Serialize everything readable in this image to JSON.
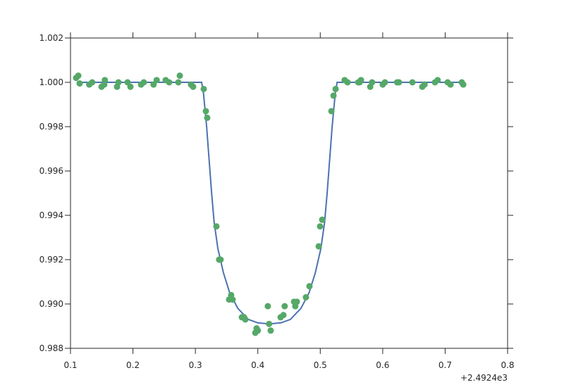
{
  "chart_data": {
    "type": "scatter",
    "x_offset_label": "+2.4924e3",
    "xlim": [
      0.1,
      0.8
    ],
    "xticks": [
      0.1,
      0.2,
      0.3,
      0.4,
      0.5,
      0.6,
      0.7,
      0.8
    ],
    "ylim": [
      0.988,
      1.002
    ],
    "yticks": [
      0.988,
      {
        "value": 0.99,
        "label": "0.990"
      },
      0.992,
      0.994,
      0.996,
      0.998,
      {
        "value": 1.0,
        "label": "1.000"
      },
      1.002
    ],
    "grid": false,
    "series": [
      {
        "type": "line",
        "color": "#4c72b0",
        "x": [
          0.11,
          0.31,
          0.313,
          0.318,
          0.322,
          0.326,
          0.33,
          0.336,
          0.345,
          0.355,
          0.368,
          0.385,
          0.4,
          0.4185,
          0.437,
          0.452,
          0.469,
          0.482,
          0.492,
          0.501,
          0.507,
          0.511,
          0.515,
          0.519,
          0.524,
          0.527,
          0.73
        ],
        "values": [
          1.0,
          1.0,
          0.9995,
          0.998,
          0.9965,
          0.995,
          0.9937,
          0.9925,
          0.9914,
          0.9905,
          0.9898,
          0.9893,
          0.98915,
          0.9891,
          0.98915,
          0.9893,
          0.9898,
          0.9905,
          0.9914,
          0.9925,
          0.9937,
          0.995,
          0.9965,
          0.998,
          0.9995,
          1.0,
          1.0
        ]
      },
      {
        "type": "scatter",
        "color": "#55a868",
        "x": [
          0.109,
          0.1125,
          0.1147,
          0.13,
          0.1348,
          0.1497,
          0.154,
          0.155,
          0.1745,
          0.1768,
          0.1914,
          0.196,
          0.213,
          0.2174,
          0.233,
          0.238,
          0.2524,
          0.258,
          0.275,
          0.2727,
          0.293,
          0.2964,
          0.3134,
          0.3168,
          0.319,
          0.3337,
          0.338,
          0.3404,
          0.354,
          0.3573,
          0.3596,
          0.3744,
          0.378,
          0.38,
          0.396,
          0.398,
          0.4,
          0.416,
          0.418,
          0.4206,
          0.4365,
          0.441,
          0.443,
          0.458,
          0.46,
          0.4625,
          0.477,
          0.4827,
          0.4975,
          0.4997,
          0.503,
          0.5178,
          0.5212,
          0.5246,
          0.539,
          0.5437,
          0.5607,
          0.563,
          0.5652,
          0.58,
          0.583,
          0.6,
          0.6035,
          0.623,
          0.626,
          0.6476,
          0.6634,
          0.667,
          0.6837,
          0.688,
          0.704,
          0.7086,
          0.7266,
          0.729
        ],
        "values": [
          1.0002,
          1.0003,
          0.99995,
          0.9999,
          1.0,
          0.9998,
          0.9999,
          1.0001,
          0.9998,
          1.0,
          1.0,
          0.9998,
          0.9999,
          1.0,
          0.9999,
          1.0001,
          1.0001,
          1.0,
          1.0003,
          1.0,
          0.9999,
          0.9998,
          0.9997,
          0.9987,
          0.9984,
          0.9935,
          0.992,
          0.992,
          0.9902,
          0.9904,
          0.9902,
          0.9894,
          0.9894,
          0.9893,
          0.9887,
          0.9889,
          0.9888,
          0.9899,
          0.9891,
          0.9888,
          0.9894,
          0.9895,
          0.9899,
          0.9901,
          0.9899,
          0.9901,
          0.9903,
          0.9908,
          0.9926,
          0.9935,
          0.9938,
          0.9987,
          0.9994,
          0.9997,
          1.0001,
          1.0,
          1.0,
          1.0,
          1.0001,
          0.9998,
          1.0,
          0.9999,
          1.0,
          1.0,
          1.0,
          1.0,
          0.9998,
          0.9999,
          1.0,
          1.0001,
          1.0,
          0.9999,
          1.0,
          0.9999
        ]
      }
    ]
  }
}
